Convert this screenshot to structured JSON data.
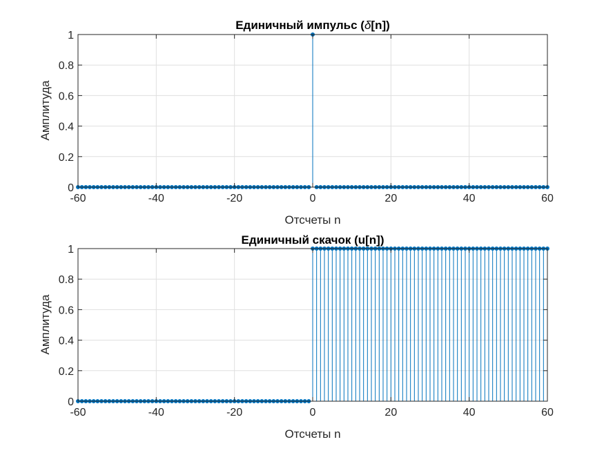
{
  "colors": {
    "stem": "#0072BD",
    "grid": "#DFDFDF",
    "axes": "#262626"
  },
  "chart_data": [
    {
      "type": "stem",
      "title": "Единичный импульс (δ[n])",
      "title_parts": [
        "Единичный импульс (",
        "δ",
        "[n])"
      ],
      "xlabel": "Отсчеты n",
      "ylabel": "Амплитуда",
      "xlim": [
        -60,
        60
      ],
      "ylim": [
        0,
        1
      ],
      "xticks": [
        "-60",
        "-40",
        "-20",
        "0",
        "20",
        "40",
        "60"
      ],
      "yticks": [
        "0",
        "0.2",
        "0.4",
        "0.6",
        "0.8",
        "1"
      ],
      "grid": true,
      "x_range": [
        -60,
        60
      ],
      "rule": "y = 1 when n = 0, otherwise y = 0"
    },
    {
      "type": "stem",
      "title": "Единичный скачок (u[n])",
      "xlabel": "Отсчеты n",
      "ylabel": "Амплитуда",
      "xlim": [
        -60,
        60
      ],
      "ylim": [
        0,
        1
      ],
      "xticks": [
        "-60",
        "-40",
        "-20",
        "0",
        "20",
        "40",
        "60"
      ],
      "yticks": [
        "0",
        "0.2",
        "0.4",
        "0.6",
        "0.8",
        "1"
      ],
      "grid": true,
      "x_range": [
        -60,
        60
      ],
      "rule": "y = 1 when n >= 0, otherwise y = 0"
    }
  ]
}
